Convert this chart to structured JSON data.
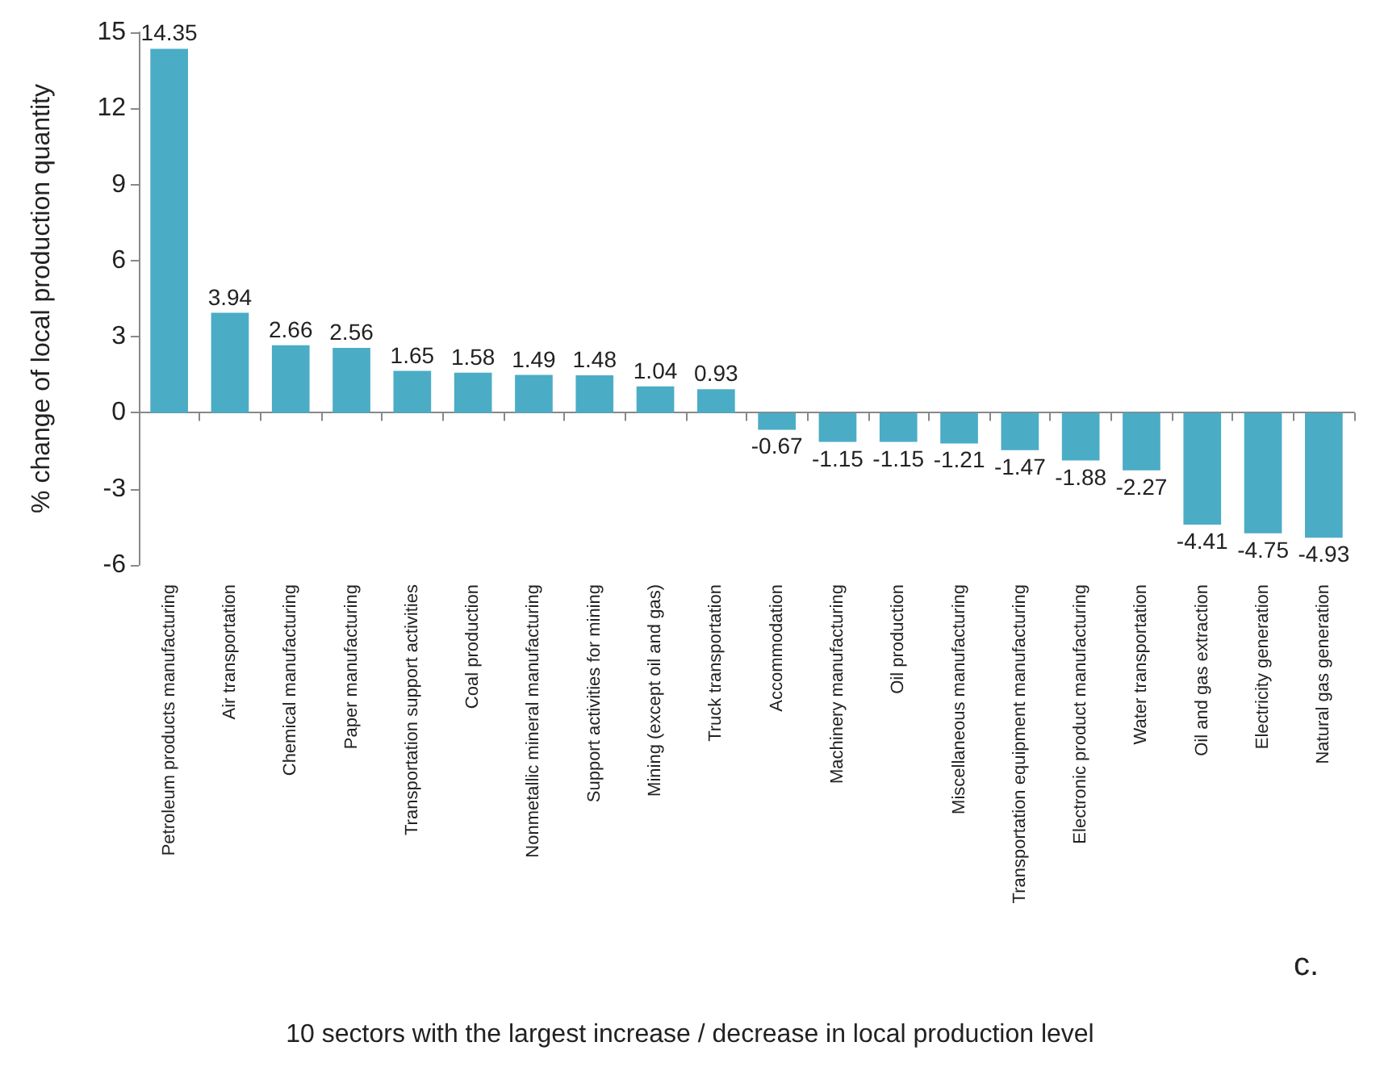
{
  "chart_data": {
    "type": "bar",
    "ylabel": "% change of local production quantity",
    "xlabel": "10 sectors with the largest increase / decrease in local production level",
    "categories": [
      "Petroleum products manufacturing",
      "Air transportation",
      "Chemical manufacturing",
      "Paper manufacturing",
      "Transportation support activities",
      "Coal production",
      "Nonmetallic mineral manufacturing",
      "Support activities for mining",
      "Mining (except oil and gas)",
      "Truck transportation",
      "Accommodation",
      "Machinery manufacturing",
      "Oil production",
      "Miscellaneous manufacturing",
      "Transportation equipment manufacturing",
      "Electronic product manufacturing",
      "Water transportation",
      "Oil and gas extraction",
      "Electricity generation",
      "Natural gas generation"
    ],
    "values": [
      14.35,
      3.94,
      2.66,
      2.56,
      1.65,
      1.58,
      1.49,
      1.48,
      1.04,
      0.93,
      -0.67,
      -1.15,
      -1.15,
      -1.21,
      -1.47,
      -1.88,
      -2.27,
      -4.41,
      -4.75,
      -4.93
    ],
    "color": "#4bacc6",
    "ylim": [
      -6,
      15
    ],
    "yticks": [
      -6,
      -3,
      0,
      3,
      6,
      9,
      12,
      15
    ],
    "data_labels": true,
    "annotations": [
      "c."
    ]
  }
}
